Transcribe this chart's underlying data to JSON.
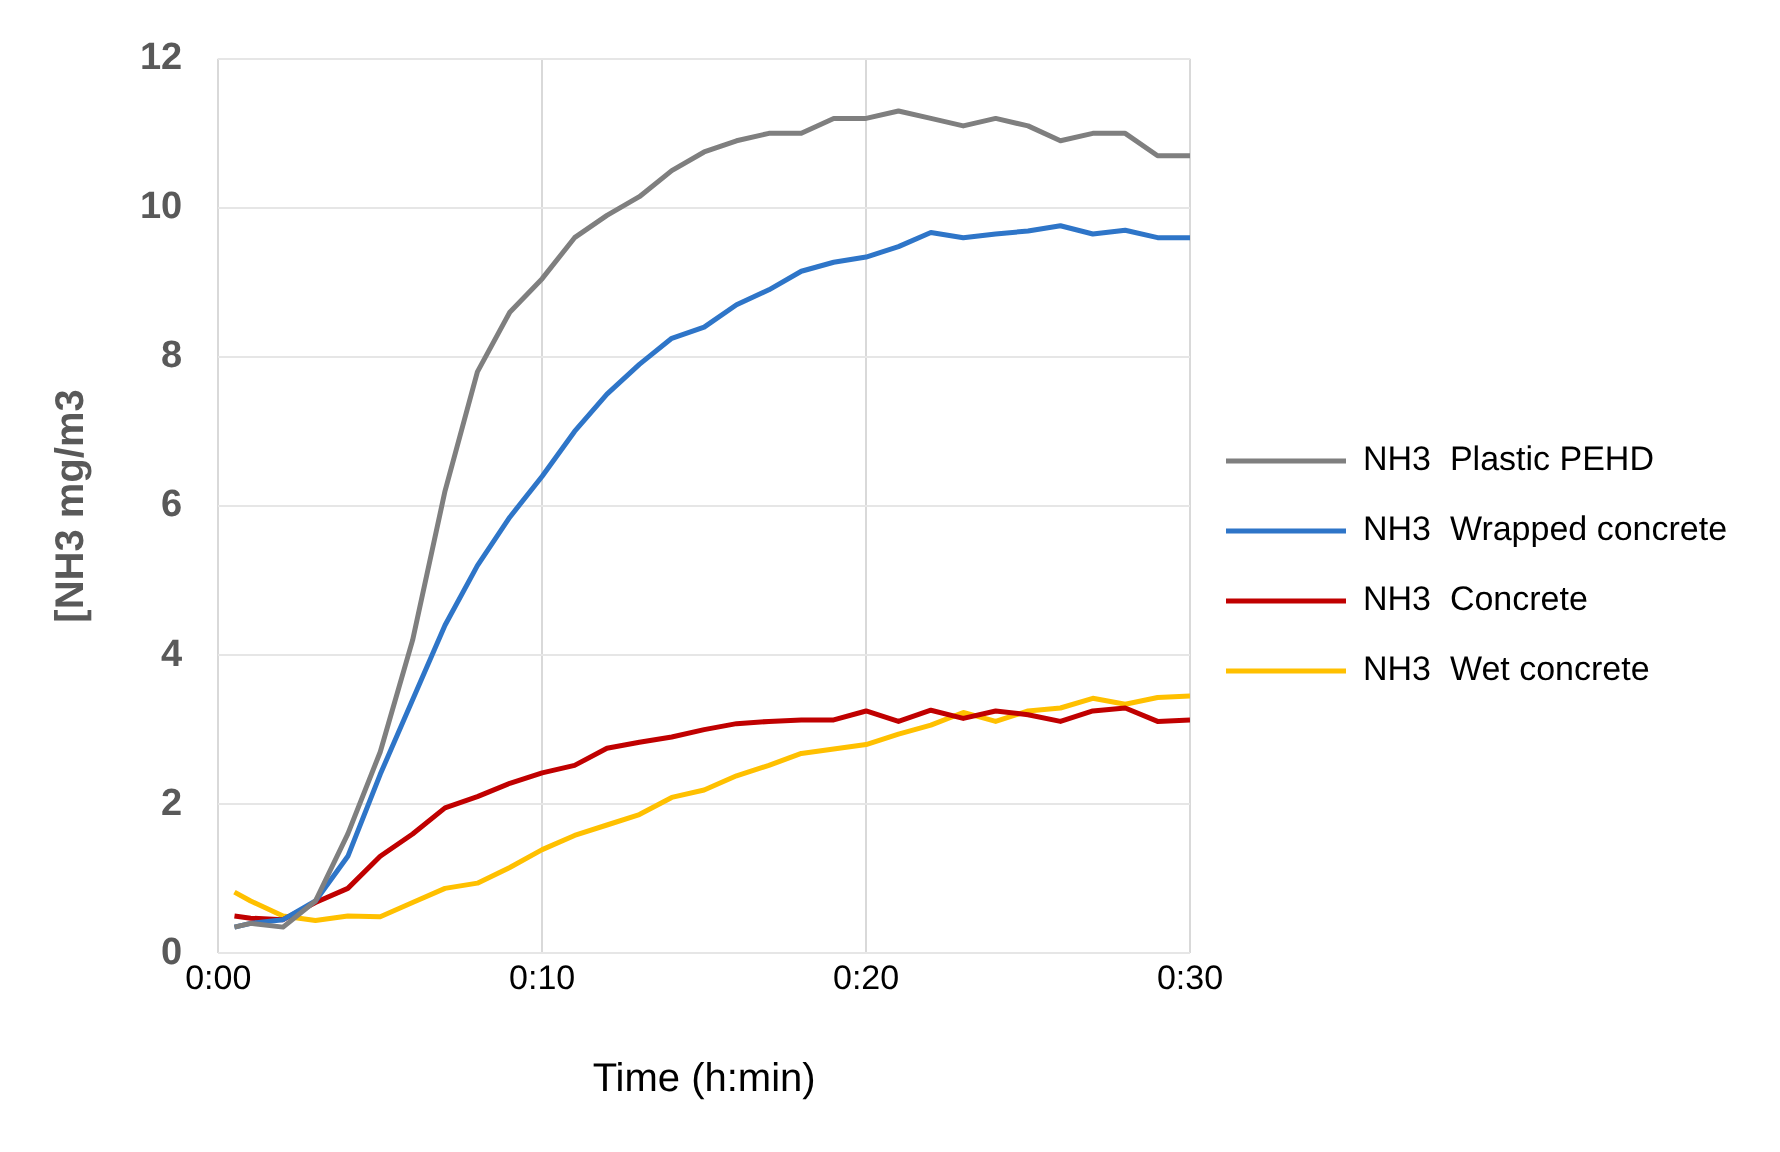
{
  "chart_data": {
    "type": "line",
    "xlabel": "Time (h:min)",
    "ylabel": "[NH3 mg/m3",
    "x": [
      0.5,
      1,
      2,
      3,
      4,
      5,
      6,
      7,
      8,
      9,
      10,
      11,
      12,
      13,
      14,
      15,
      16,
      17,
      18,
      19,
      20,
      21,
      22,
      23,
      24,
      25,
      26,
      27,
      28,
      29,
      30
    ],
    "series": [
      {
        "name": "NH3  Plastic PEHD",
        "color": "#7f7f7f",
        "values": [
          0.35,
          0.4,
          0.35,
          0.7,
          1.6,
          2.7,
          4.2,
          6.2,
          7.8,
          8.6,
          9.05,
          9.6,
          9.9,
          10.15,
          10.5,
          10.75,
          10.9,
          11.0,
          11.0,
          11.2,
          11.2,
          11.3,
          11.2,
          11.1,
          11.2,
          11.1,
          10.9,
          11.0,
          11.0,
          10.7,
          10.7
        ]
      },
      {
        "name": "NH3  Wrapped concrete",
        "color": "#2e75c8",
        "values": [
          0.35,
          0.4,
          0.45,
          0.7,
          1.3,
          2.4,
          3.4,
          4.4,
          5.2,
          5.85,
          6.4,
          7.0,
          7.5,
          7.9,
          8.25,
          8.4,
          8.7,
          8.9,
          9.15,
          9.27,
          9.34,
          9.48,
          9.67,
          9.6,
          9.65,
          9.69,
          9.76,
          9.65,
          9.7,
          9.6,
          9.6
        ]
      },
      {
        "name": "NH3  Concrete",
        "color": "#c00000",
        "values": [
          0.5,
          0.47,
          0.45,
          0.68,
          0.87,
          1.3,
          1.6,
          1.95,
          2.1,
          2.28,
          2.42,
          2.52,
          2.75,
          2.83,
          2.9,
          3.0,
          3.08,
          3.11,
          3.13,
          3.13,
          3.25,
          3.11,
          3.26,
          3.15,
          3.25,
          3.2,
          3.11,
          3.25,
          3.29,
          3.11,
          3.13
        ]
      },
      {
        "name": "NH3  Wet concrete",
        "color": "#ffc000",
        "values": [
          0.82,
          0.7,
          0.5,
          0.44,
          0.5,
          0.49,
          0.68,
          0.87,
          0.94,
          1.15,
          1.39,
          1.58,
          1.72,
          1.86,
          2.09,
          2.19,
          2.38,
          2.52,
          2.68,
          2.74,
          2.8,
          2.94,
          3.06,
          3.23,
          3.11,
          3.25,
          3.29,
          3.42,
          3.34,
          3.43,
          3.45
        ]
      }
    ],
    "xlim": [
      0,
      30
    ],
    "xticks": [
      {
        "value": 0,
        "label": "0:00"
      },
      {
        "value": 10,
        "label": "0:10"
      },
      {
        "value": 20,
        "label": "0:20"
      },
      {
        "value": 30,
        "label": "0:30"
      }
    ],
    "ylim": [
      0,
      12
    ],
    "yticks": [
      0,
      2,
      4,
      6,
      8,
      10,
      12
    ],
    "grid": true,
    "legend": "right",
    "marker": "none",
    "line_style": "solid"
  }
}
